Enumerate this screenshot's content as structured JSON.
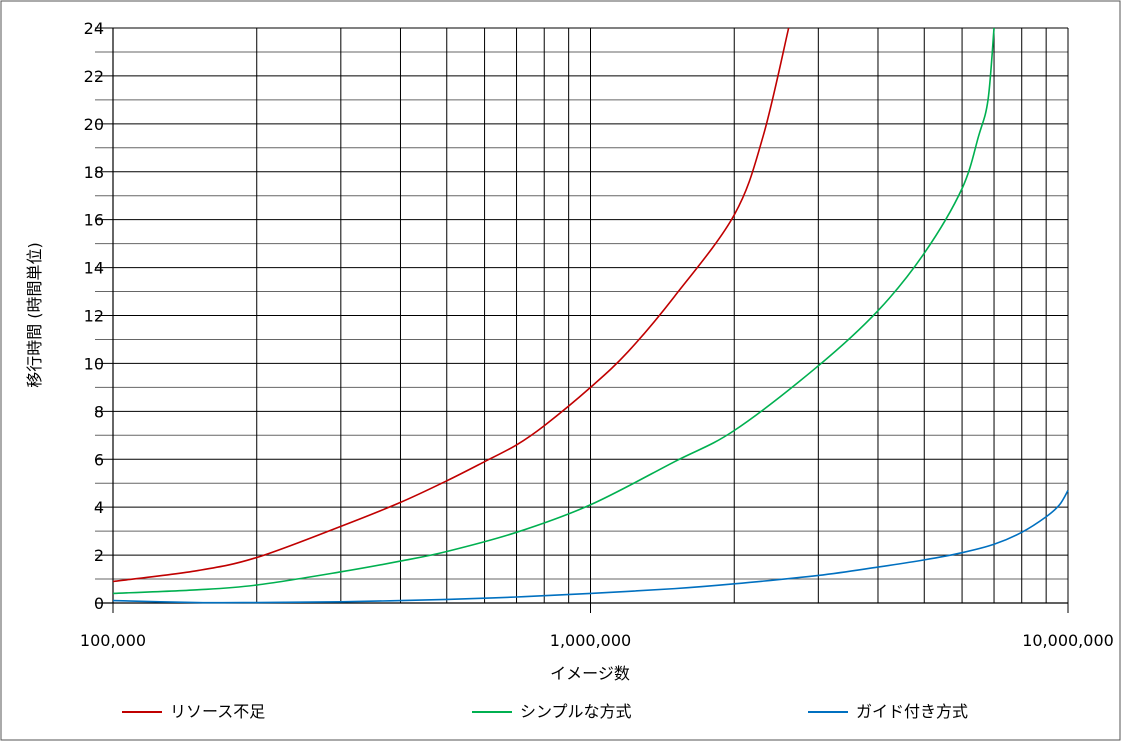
{
  "chart_data": {
    "type": "line",
    "xlabel": "イメージ数",
    "ylabel": "移行時間 (時間単位)",
    "x_scale": "log",
    "xlim": [
      100000,
      10000000
    ],
    "ylim": [
      0,
      24
    ],
    "y_ticks": [
      0,
      2,
      4,
      6,
      8,
      10,
      12,
      14,
      16,
      18,
      20,
      22,
      24
    ],
    "y_tick_labels": [
      "0",
      "2",
      "4",
      "6",
      "8",
      "10",
      "12",
      "14",
      "16",
      "18",
      "20",
      "22",
      "24"
    ],
    "y_minor_step": 1,
    "x_ticks": [
      100000,
      1000000,
      10000000
    ],
    "x_tick_labels": [
      "100,000",
      "1,000,000",
      "10,000,000"
    ],
    "x_minor_lines": [
      200000,
      300000,
      400000,
      500000,
      600000,
      700000,
      800000,
      900000,
      2000000,
      3000000,
      4000000,
      5000000,
      6000000,
      7000000,
      8000000,
      9000000
    ],
    "grid": true,
    "legend_position": "bottom",
    "series": [
      {
        "name": "リソース不足",
        "color": "#c00000",
        "x": [
          100000,
          150000,
          200000,
          300000,
          400000,
          500000,
          600000,
          700000,
          800000,
          1000000,
          1200000,
          1500000,
          2000000,
          2300000,
          2600000
        ],
        "y": [
          0.9,
          1.35,
          1.9,
          3.2,
          4.2,
          5.1,
          5.9,
          6.6,
          7.4,
          9.0,
          10.5,
          12.8,
          16.2,
          19.5,
          24.0
        ]
      },
      {
        "name": "シンプルな方式",
        "color": "#00b050",
        "x": [
          100000,
          150000,
          200000,
          300000,
          400000,
          500000,
          700000,
          1000000,
          1500000,
          2000000,
          3000000,
          4000000,
          5000000,
          6000000,
          6500000,
          6800000,
          7000000
        ],
        "y": [
          0.4,
          0.55,
          0.75,
          1.3,
          1.75,
          2.15,
          2.95,
          4.1,
          5.9,
          7.2,
          9.9,
          12.2,
          14.6,
          17.3,
          19.5,
          21.0,
          24.0
        ]
      },
      {
        "name": "ガイド付き方式",
        "color": "#0070c0",
        "x": [
          100000,
          150000,
          200000,
          300000,
          500000,
          700000,
          1000000,
          1500000,
          2000000,
          3000000,
          4000000,
          5000000,
          6000000,
          7000000,
          8000000,
          9000000,
          9600000,
          10000000
        ],
        "y": [
          0.1,
          0.02,
          0.02,
          0.05,
          0.15,
          0.25,
          0.4,
          0.6,
          0.8,
          1.15,
          1.5,
          1.8,
          2.1,
          2.45,
          2.95,
          3.6,
          4.1,
          4.7
        ]
      }
    ]
  }
}
